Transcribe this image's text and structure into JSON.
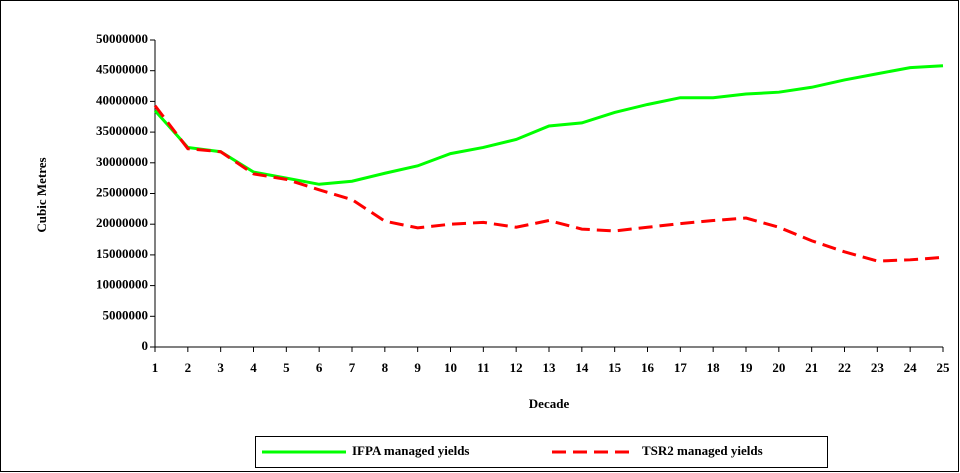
{
  "chart_data": {
    "type": "line",
    "x_label": "Decade",
    "y_label": "Cubic Metres",
    "x": [
      1,
      2,
      3,
      4,
      5,
      6,
      7,
      8,
      9,
      10,
      11,
      12,
      13,
      14,
      15,
      16,
      17,
      18,
      19,
      20,
      21,
      22,
      23,
      24,
      25
    ],
    "xlim": [
      1,
      25
    ],
    "xticks": [
      1,
      2,
      3,
      4,
      5,
      6,
      7,
      8,
      9,
      10,
      11,
      12,
      13,
      14,
      15,
      16,
      17,
      18,
      19,
      20,
      21,
      22,
      23,
      24,
      25
    ],
    "ylim": [
      0,
      50000000
    ],
    "yticks": [
      0,
      5000000,
      10000000,
      15000000,
      20000000,
      25000000,
      30000000,
      35000000,
      40000000,
      45000000,
      50000000
    ],
    "legend": "bottom",
    "series": [
      {
        "name": "IFPA managed yields",
        "color": "#00ff00",
        "dash": "solid",
        "values": [
          38500000,
          32500000,
          31800000,
          28500000,
          27500000,
          26500000,
          27000000,
          28300000,
          29500000,
          31500000,
          32500000,
          33800000,
          36000000,
          36500000,
          38200000,
          39500000,
          40600000,
          40600000,
          41200000,
          41500000,
          42300000,
          43500000,
          44500000,
          45500000,
          45800000
        ]
      },
      {
        "name": "TSR2 managed yields",
        "color": "#ff0000",
        "dash": "dashed",
        "values": [
          39300000,
          32300000,
          31800000,
          28200000,
          27300000,
          25600000,
          24000000,
          20500000,
          19400000,
          20000000,
          20300000,
          19500000,
          20600000,
          19200000,
          18900000,
          19500000,
          20100000,
          20600000,
          21000000,
          19500000,
          17300000,
          15500000,
          14000000,
          14200000,
          14600000
        ]
      }
    ]
  }
}
